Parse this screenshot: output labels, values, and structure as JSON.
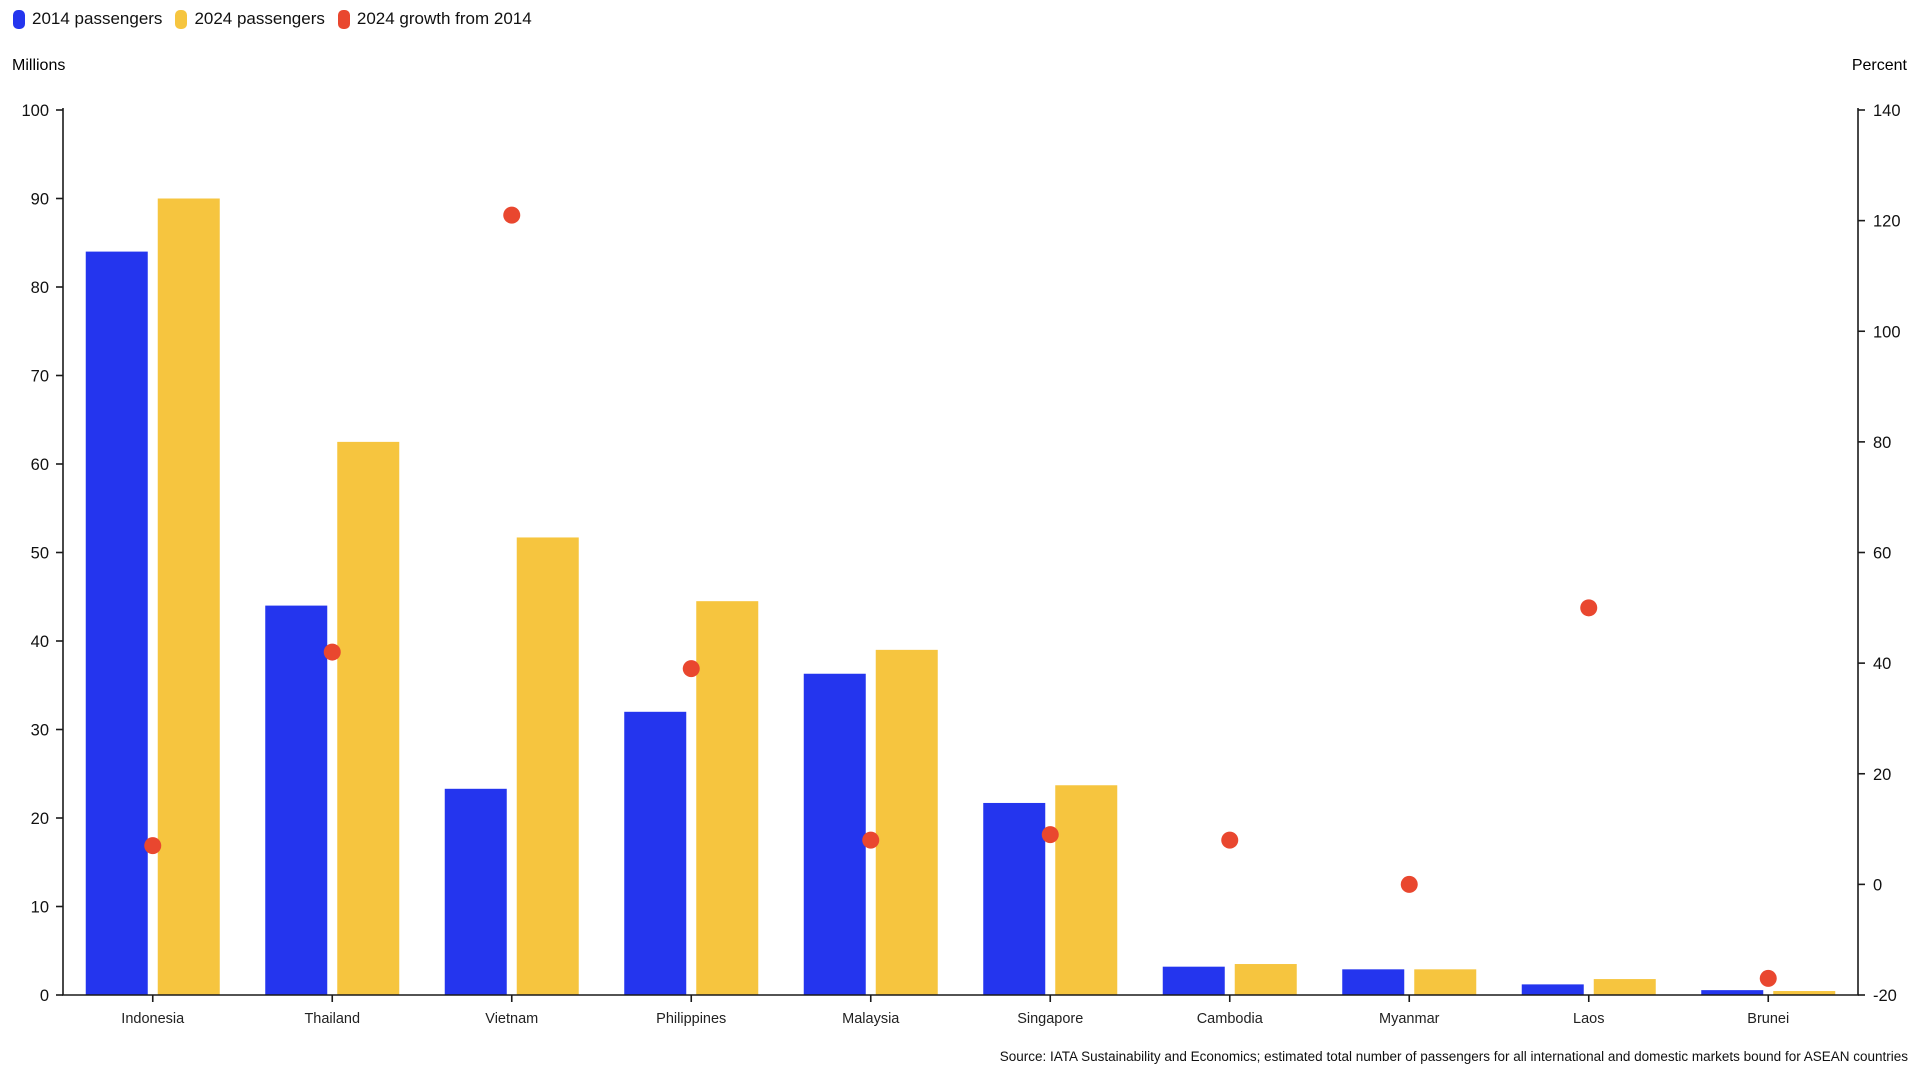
{
  "chart_data": {
    "type": "bar",
    "subtype": "grouped-bars-with-scatter-overlay",
    "categories": [
      "Indonesia",
      "Thailand",
      "Vietnam",
      "Philippines",
      "Malaysia",
      "Singapore",
      "Cambodia",
      "Myanmar",
      "Laos",
      "Brunei"
    ],
    "series": [
      {
        "name": "2014 passengers",
        "type": "bar",
        "axis": "left",
        "color": "#2435EE",
        "values": [
          84,
          44,
          23.3,
          32,
          36.3,
          21.7,
          3.2,
          2.9,
          1.2,
          0.55
        ]
      },
      {
        "name": "2024 passengers",
        "type": "bar",
        "axis": "left",
        "color": "#F6C53F",
        "values": [
          90,
          62.5,
          51.7,
          44.5,
          39,
          23.7,
          3.5,
          2.9,
          1.8,
          0.45
        ]
      },
      {
        "name": "2024 growth from 2014",
        "type": "scatter",
        "axis": "right",
        "color": "#E9472F",
        "values": [
          7,
          42,
          121,
          39,
          8,
          9,
          8,
          0,
          50,
          -17
        ]
      }
    ],
    "left_axis": {
      "title": "Millions",
      "min": 0,
      "max": 100,
      "step": 10
    },
    "right_axis": {
      "title": "Percent",
      "min": -20,
      "max": 140,
      "step": 20
    },
    "grid": "off",
    "legend_position": "top-left",
    "source": "Source: IATA Sustainability and Economics; estimated total number of passengers for all international and domestic markets bound for ASEAN countries"
  }
}
